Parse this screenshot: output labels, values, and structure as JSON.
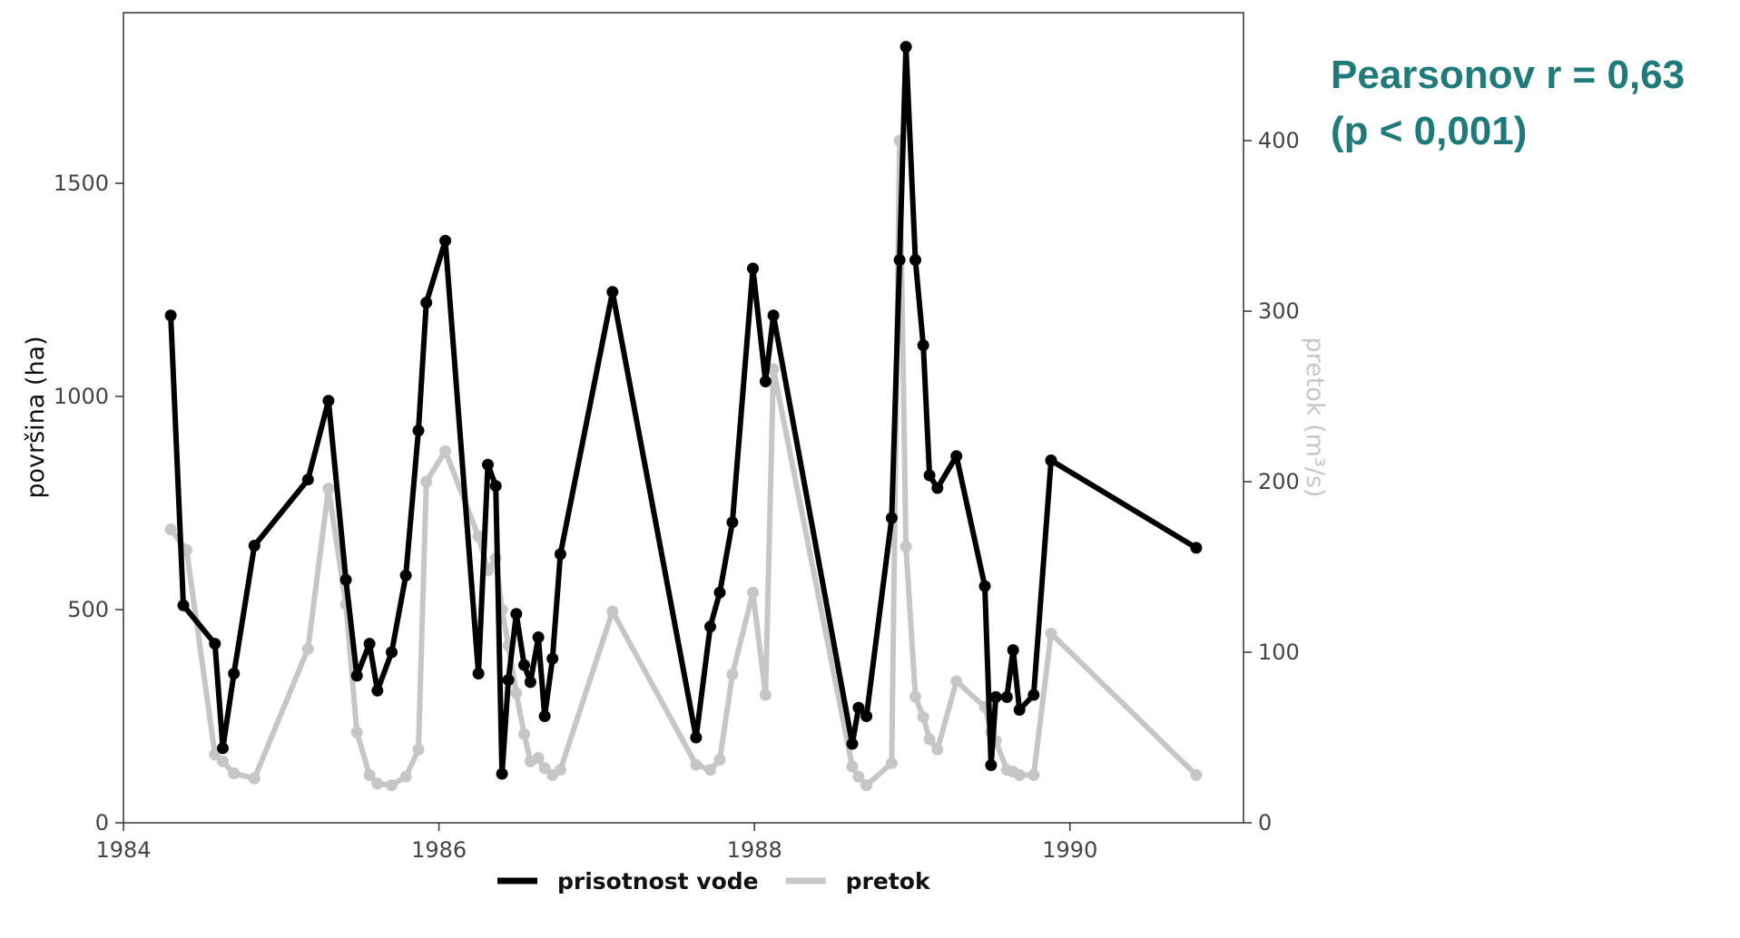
{
  "annotation": {
    "line1": "Pearsonov r = 0,63",
    "line2": "(p < 0,001)",
    "color": "#1f7a7a"
  },
  "chart_data": {
    "type": "line",
    "title": "",
    "xlabel": "",
    "ylabel": "površina (ha)",
    "y2label": "pretok (m³/s)",
    "xlim": [
      1984.0,
      1991.1
    ],
    "ylim": [
      0,
      1900
    ],
    "y2lim": [
      0,
      475
    ],
    "x_ticks": [
      1984,
      1986,
      1988,
      1990
    ],
    "y_ticks": [
      0,
      500,
      1000,
      1500
    ],
    "y2_ticks": [
      0,
      100,
      200,
      300,
      400
    ],
    "grid": false,
    "legend_position": "bottom",
    "series": [
      {
        "name": "prisotnost vode",
        "axis": "left",
        "color": "#000000",
        "points": [
          [
            1984.3,
            1190
          ],
          [
            1984.38,
            510
          ],
          [
            1984.58,
            420
          ],
          [
            1984.63,
            175
          ],
          [
            1984.7,
            350
          ],
          [
            1984.83,
            650
          ],
          [
            1985.17,
            805
          ],
          [
            1985.3,
            990
          ],
          [
            1985.41,
            570
          ],
          [
            1985.48,
            345
          ],
          [
            1985.56,
            420
          ],
          [
            1985.61,
            310
          ],
          [
            1985.7,
            400
          ],
          [
            1985.79,
            580
          ],
          [
            1985.87,
            920
          ],
          [
            1985.92,
            1220
          ],
          [
            1986.04,
            1365
          ],
          [
            1986.25,
            350
          ],
          [
            1986.31,
            840
          ],
          [
            1986.36,
            790
          ],
          [
            1986.4,
            115
          ],
          [
            1986.44,
            335
          ],
          [
            1986.49,
            490
          ],
          [
            1986.54,
            370
          ],
          [
            1986.58,
            330
          ],
          [
            1986.63,
            435
          ],
          [
            1986.67,
            250
          ],
          [
            1986.72,
            385
          ],
          [
            1986.77,
            630
          ],
          [
            1987.1,
            1245
          ],
          [
            1987.63,
            200
          ],
          [
            1987.72,
            460
          ],
          [
            1987.78,
            540
          ],
          [
            1987.86,
            705
          ],
          [
            1987.99,
            1300
          ],
          [
            1988.07,
            1035
          ],
          [
            1988.12,
            1190
          ],
          [
            1988.62,
            185
          ],
          [
            1988.66,
            270
          ],
          [
            1988.71,
            250
          ],
          [
            1988.87,
            715
          ],
          [
            1988.92,
            1320
          ],
          [
            1988.96,
            1820
          ],
          [
            1989.02,
            1320
          ],
          [
            1989.07,
            1120
          ],
          [
            1989.11,
            815
          ],
          [
            1989.16,
            785
          ],
          [
            1989.28,
            860
          ],
          [
            1989.46,
            555
          ],
          [
            1989.5,
            135
          ],
          [
            1989.53,
            295
          ],
          [
            1989.6,
            295
          ],
          [
            1989.64,
            405
          ],
          [
            1989.68,
            265
          ],
          [
            1989.77,
            300
          ],
          [
            1989.88,
            850
          ],
          [
            1990.8,
            645
          ]
        ]
      },
      {
        "name": "pretok",
        "axis": "right",
        "color": "#c6c6c6",
        "points": [
          [
            1984.3,
            172
          ],
          [
            1984.4,
            160
          ],
          [
            1984.58,
            40
          ],
          [
            1984.63,
            36
          ],
          [
            1984.7,
            29
          ],
          [
            1984.83,
            26
          ],
          [
            1985.17,
            102
          ],
          [
            1985.3,
            196
          ],
          [
            1985.41,
            128
          ],
          [
            1985.48,
            53
          ],
          [
            1985.56,
            28
          ],
          [
            1985.61,
            23
          ],
          [
            1985.7,
            22
          ],
          [
            1985.79,
            27
          ],
          [
            1985.87,
            43
          ],
          [
            1985.92,
            200
          ],
          [
            1986.04,
            218
          ],
          [
            1986.25,
            168
          ],
          [
            1986.31,
            148
          ],
          [
            1986.36,
            155
          ],
          [
            1986.4,
            125
          ],
          [
            1986.44,
            104
          ],
          [
            1986.49,
            76
          ],
          [
            1986.54,
            52
          ],
          [
            1986.58,
            36
          ],
          [
            1986.63,
            38
          ],
          [
            1986.67,
            32
          ],
          [
            1986.72,
            28
          ],
          [
            1986.77,
            31
          ],
          [
            1987.1,
            124
          ],
          [
            1987.63,
            34
          ],
          [
            1987.72,
            31
          ],
          [
            1987.78,
            37
          ],
          [
            1987.86,
            87
          ],
          [
            1987.99,
            135
          ],
          [
            1988.07,
            75
          ],
          [
            1988.12,
            266
          ],
          [
            1988.62,
            33
          ],
          [
            1988.66,
            27
          ],
          [
            1988.71,
            22
          ],
          [
            1988.87,
            35
          ],
          [
            1988.92,
            400
          ],
          [
            1988.96,
            162
          ],
          [
            1989.02,
            74
          ],
          [
            1989.07,
            62
          ],
          [
            1989.11,
            49
          ],
          [
            1989.16,
            43
          ],
          [
            1989.28,
            83
          ],
          [
            1989.46,
            68
          ],
          [
            1989.5,
            53
          ],
          [
            1989.53,
            48
          ],
          [
            1989.6,
            31
          ],
          [
            1989.64,
            30
          ],
          [
            1989.68,
            28
          ],
          [
            1989.77,
            28
          ],
          [
            1989.88,
            111
          ],
          [
            1990.8,
            28
          ]
        ]
      }
    ]
  }
}
